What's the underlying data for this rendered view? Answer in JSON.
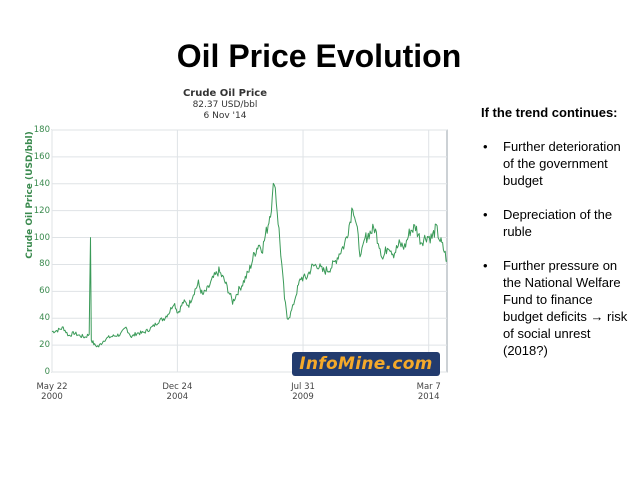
{
  "slide": {
    "title": "Oil Price Evolution",
    "side_heading": "If the trend continues:",
    "bullets": [
      "Further deterioration of the government budget",
      "Depreciation of the ruble",
      "Further pressure on the National Welfare Fund to finance budget deficits → risk of social unrest (2018?)"
    ],
    "bullet_symbol": "•"
  },
  "chart_data": {
    "type": "line",
    "title": "Crude Oil Price",
    "subtitle": "82.37 USD/bbl",
    "date": "6 Nov '14",
    "ylabel": "Crude Oil Price (USD/bbl)",
    "ylim": [
      0,
      180
    ],
    "yticks": [
      "0",
      "20",
      "40",
      "60",
      "80",
      "100",
      "120",
      "140",
      "160",
      "180"
    ],
    "xticks": [
      {
        "line1": "May 22",
        "line2": "2000",
        "x": 2000.39
      },
      {
        "line1": "Dec 24",
        "line2": "2004",
        "x": 2004.98
      },
      {
        "line1": "Jul 31",
        "line2": "2009",
        "x": 2009.58
      },
      {
        "line1": "Mar 7",
        "line2": "2014",
        "x": 2014.18
      }
    ],
    "xlim": [
      2000.39,
      2014.85
    ],
    "grid": true,
    "watermark": "InfoMine.com",
    "line_color": "#3a9a58",
    "series": [
      {
        "points": [
          [
            2000.39,
            30
          ],
          [
            2000.6,
            31
          ],
          [
            2000.8,
            33
          ],
          [
            2001.0,
            27
          ],
          [
            2001.2,
            29
          ],
          [
            2001.4,
            27
          ],
          [
            2001.6,
            26
          ],
          [
            2001.75,
            28
          ],
          [
            2001.8,
            100
          ],
          [
            2001.83,
            24
          ],
          [
            2001.95,
            20
          ],
          [
            2002.1,
            19
          ],
          [
            2002.3,
            24
          ],
          [
            2002.5,
            26
          ],
          [
            2002.7,
            27
          ],
          [
            2002.9,
            28
          ],
          [
            2003.1,
            33
          ],
          [
            2003.3,
            26
          ],
          [
            2003.5,
            29
          ],
          [
            2003.7,
            29
          ],
          [
            2003.9,
            31
          ],
          [
            2004.1,
            34
          ],
          [
            2004.3,
            38
          ],
          [
            2004.5,
            40
          ],
          [
            2004.7,
            45
          ],
          [
            2004.85,
            52
          ],
          [
            2005.0,
            44
          ],
          [
            2005.2,
            52
          ],
          [
            2005.4,
            50
          ],
          [
            2005.6,
            60
          ],
          [
            2005.75,
            66
          ],
          [
            2005.9,
            57
          ],
          [
            2006.1,
            62
          ],
          [
            2006.3,
            70
          ],
          [
            2006.5,
            75
          ],
          [
            2006.7,
            68
          ],
          [
            2006.9,
            58
          ],
          [
            2007.0,
            52
          ],
          [
            2007.2,
            60
          ],
          [
            2007.4,
            67
          ],
          [
            2007.6,
            75
          ],
          [
            2007.8,
            88
          ],
          [
            2007.95,
            95
          ],
          [
            2008.1,
            92
          ],
          [
            2008.3,
            110
          ],
          [
            2008.45,
            127
          ],
          [
            2008.53,
            145
          ],
          [
            2008.6,
            128
          ],
          [
            2008.7,
            105
          ],
          [
            2008.8,
            80
          ],
          [
            2008.9,
            55
          ],
          [
            2009.0,
            40
          ],
          [
            2009.1,
            42
          ],
          [
            2009.2,
            48
          ],
          [
            2009.35,
            60
          ],
          [
            2009.5,
            70
          ],
          [
            2009.7,
            70
          ],
          [
            2009.9,
            78
          ],
          [
            2010.1,
            80
          ],
          [
            2010.3,
            75
          ],
          [
            2010.5,
            76
          ],
          [
            2010.7,
            80
          ],
          [
            2010.9,
            88
          ],
          [
            2011.1,
            95
          ],
          [
            2011.3,
            112
          ],
          [
            2011.4,
            125
          ],
          [
            2011.5,
            113
          ],
          [
            2011.7,
            85
          ],
          [
            2011.85,
            99
          ],
          [
            2012.0,
            103
          ],
          [
            2012.2,
            107
          ],
          [
            2012.4,
            93
          ],
          [
            2012.5,
            84
          ],
          [
            2012.7,
            95
          ],
          [
            2012.9,
            88
          ],
          [
            2013.1,
            95
          ],
          [
            2013.3,
            93
          ],
          [
            2013.5,
            105
          ],
          [
            2013.7,
            108
          ],
          [
            2013.9,
            97
          ],
          [
            2014.1,
            101
          ],
          [
            2014.3,
            100
          ],
          [
            2014.45,
            107
          ],
          [
            2014.6,
            98
          ],
          [
            2014.75,
            90
          ],
          [
            2014.85,
            82.37
          ]
        ]
      }
    ]
  }
}
